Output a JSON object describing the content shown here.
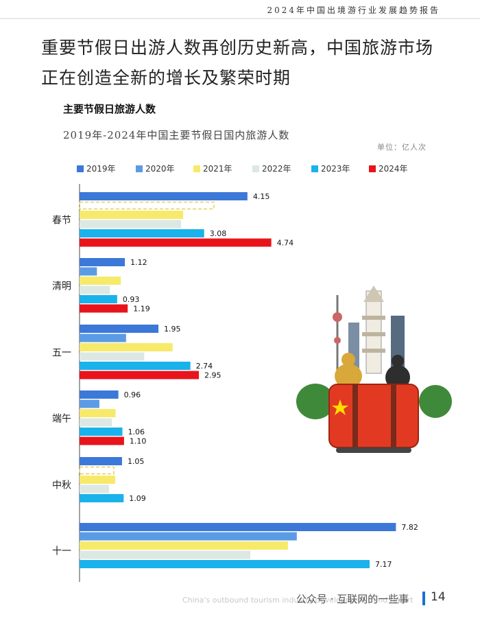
{
  "header": {
    "report_title": "2024年中国出境游行业发展趋势报告"
  },
  "headline": {
    "line1": "重要节假日出游人数再创历史新高，中国旅游市场",
    "line2": "正在创造全新的增长及繁荣时期"
  },
  "section_title": "主要节假日旅游人数",
  "chart_data": {
    "type": "bar",
    "orientation": "horizontal",
    "title": "2019年-2024年中国主要节假日国内旅游人数",
    "unit": "单位：亿人次",
    "legend_position": "top",
    "categories": [
      "春节",
      "清明",
      "五一",
      "端午",
      "中秋",
      "十一"
    ],
    "series": [
      {
        "name": "2019年",
        "color": "#3b78d8",
        "values": [
          4.15,
          1.12,
          1.95,
          0.96,
          1.05,
          7.82
        ],
        "labels": [
          "4.15",
          "1.12",
          "1.95",
          "0.96",
          "1.05",
          "7.82"
        ]
      },
      {
        "name": "2020年",
        "color": "#5b9be6",
        "values": [
          null,
          0.43,
          1.15,
          0.49,
          null,
          5.37
        ],
        "labels": [
          null,
          null,
          null,
          null,
          null,
          null
        ]
      },
      {
        "name": "2021年",
        "color": "#f7ea6a",
        "values": [
          2.56,
          1.02,
          2.3,
          0.89,
          0.88,
          5.15
        ],
        "labels": [
          null,
          null,
          null,
          null,
          null,
          null
        ]
      },
      {
        "name": "2022年",
        "color": "#dde8e3",
        "values": [
          2.51,
          0.75,
          1.6,
          0.8,
          0.73,
          4.22
        ],
        "labels": [
          null,
          null,
          null,
          null,
          null,
          null
        ]
      },
      {
        "name": "2023年",
        "color": "#1ab2ea",
        "values": [
          3.08,
          0.93,
          2.74,
          1.06,
          null,
          null
        ],
        "labels": [
          "3.08",
          "0.93",
          "2.74",
          "1.06",
          null,
          null
        ]
      },
      {
        "name": "2024年",
        "color": "#e8141c",
        "values": [
          4.74,
          1.19,
          2.95,
          1.1,
          null,
          null
        ],
        "labels": [
          "4.74",
          "1.19",
          "2.95",
          "1.10",
          null,
          null
        ]
      }
    ],
    "extra_labels": [
      {
        "category": "中秋",
        "series": "2023年",
        "value": 1.09,
        "label": "1.09"
      },
      {
        "category": "十一",
        "series": "2023年",
        "value": 7.17,
        "label": "7.17"
      }
    ],
    "combined_bars": [
      {
        "category": "中秋",
        "series": "2023年",
        "note": "2023年 bar for 中秋 shown as combined value"
      }
    ],
    "dashed_placeholders": [
      {
        "category": "春节",
        "series": "2020年"
      },
      {
        "category": "中秋",
        "series": "2020年"
      }
    ],
    "xlim": [
      0,
      8.2
    ],
    "grid": false
  },
  "footer": {
    "english": "China's outbound tourism industry development trend report",
    "watermark": "公众号 · 互联网的一些事",
    "page": "14"
  }
}
